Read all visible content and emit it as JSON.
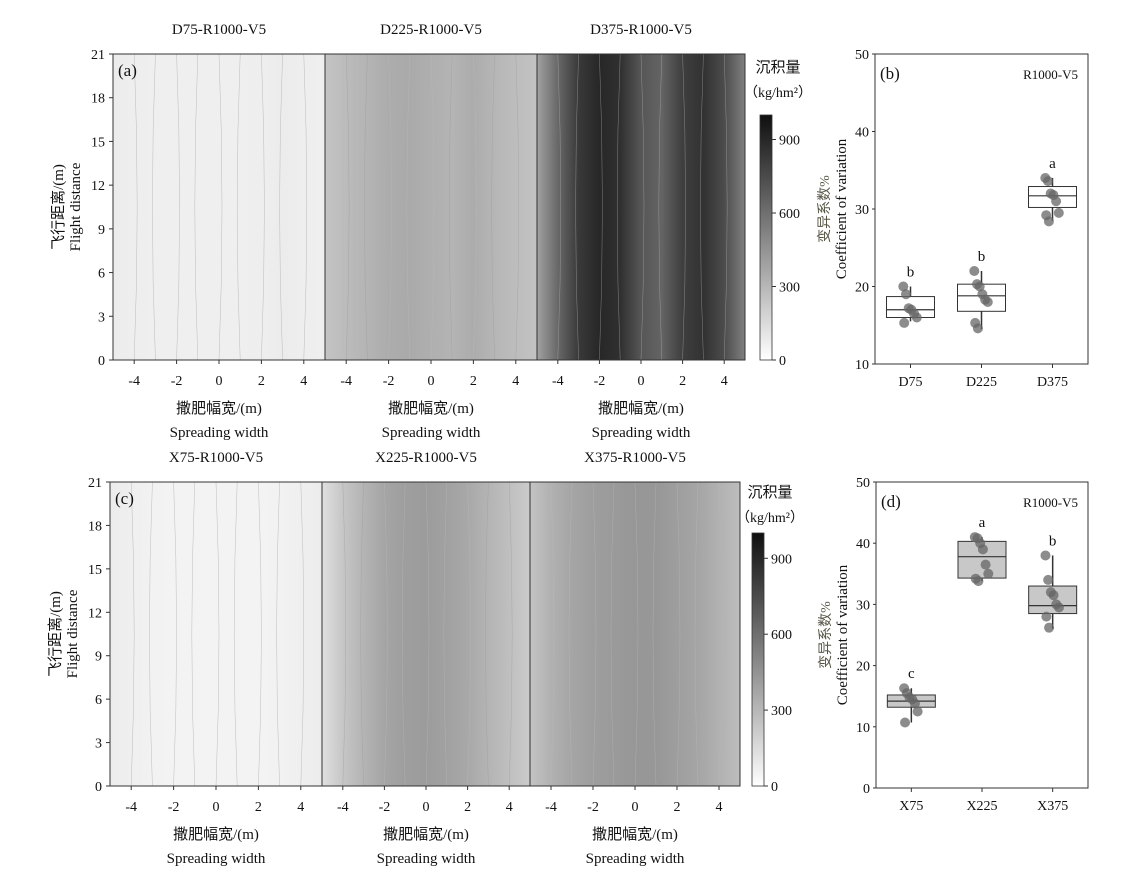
{
  "chart_data": [
    {
      "type": "heatmap",
      "id": "a",
      "panel_label": "(a)",
      "ylabel_cn": "飞行距离/(m)",
      "ylabel": "Flight distance",
      "yticks": [
        "0",
        "3",
        "6",
        "9",
        "12",
        "15",
        "18",
        "21"
      ],
      "ylim": [
        0,
        21
      ],
      "xticks": [
        "-4",
        "-2",
        "0",
        "2",
        "4"
      ],
      "xlim": [
        -5,
        5
      ],
      "xlabel_cn": "撒肥幅宽/(m)",
      "xlabel": "Spreading width",
      "colorbar": {
        "title": "沉积量",
        "unit": "（kg/hm²）",
        "ticks": [
          "0",
          "300",
          "600",
          "900"
        ],
        "range": [
          0,
          1000
        ]
      },
      "panels": [
        {
          "title": "D75-R1000-V5",
          "x": [
            -5,
            -4,
            -3,
            -2,
            -1,
            0,
            1,
            2,
            3,
            4,
            5
          ],
          "values": [
            60,
            50,
            45,
            45,
            45,
            45,
            45,
            50,
            60,
            50,
            45
          ]
        },
        {
          "title": "D225-R1000-V5",
          "x": [
            -5,
            -4,
            -3,
            -2,
            -1,
            0,
            1,
            2,
            3,
            4,
            5
          ],
          "values": [
            230,
            270,
            300,
            330,
            340,
            320,
            300,
            330,
            290,
            260,
            240
          ]
        },
        {
          "title": "D375-R1000-V5",
          "x": [
            -5,
            -4,
            -3,
            -2,
            -1,
            0,
            1,
            2,
            3,
            4,
            5
          ],
          "values": [
            380,
            620,
            820,
            900,
            860,
            700,
            640,
            800,
            850,
            740,
            520
          ]
        }
      ]
    },
    {
      "type": "box",
      "id": "b",
      "panel_label": "(b)",
      "annotation": "R1000-V5",
      "ylabel_cn": "变异系数%",
      "ylabel": "Coefficient of variation",
      "ylim": [
        10,
        50
      ],
      "yticks": [
        "10",
        "20",
        "30",
        "40",
        "50"
      ],
      "groups": [
        {
          "name": "D75",
          "min": 15.5,
          "q1": 16,
          "median": 17,
          "q3": 18.7,
          "max": 20,
          "letter": "b",
          "points": [
            20,
            19,
            17.2,
            17,
            16.5,
            16,
            15.3
          ]
        },
        {
          "name": "D225",
          "min": 14.5,
          "q1": 16.8,
          "median": 18.8,
          "q3": 20.3,
          "max": 22,
          "letter": "b",
          "points": [
            22,
            20.3,
            20,
            19,
            18.3,
            18,
            15.3,
            14.6
          ]
        },
        {
          "name": "D375",
          "min": 28.5,
          "q1": 30.2,
          "median": 31.7,
          "q3": 32.9,
          "max": 34,
          "letter": "a",
          "points": [
            34,
            33.6,
            32,
            31.8,
            31,
            29.5,
            29.2,
            28.4
          ]
        }
      ]
    },
    {
      "type": "heatmap",
      "id": "c",
      "panel_label": "(c)",
      "ylabel_cn": "飞行距离/(m)",
      "ylabel": "Flight distance",
      "yticks": [
        "0",
        "3",
        "6",
        "9",
        "12",
        "15",
        "18",
        "21"
      ],
      "ylim": [
        0,
        21
      ],
      "xticks": [
        "-4",
        "-2",
        "0",
        "2",
        "4"
      ],
      "xlim": [
        -5,
        5
      ],
      "xlabel_cn": "撒肥幅宽/(m)",
      "xlabel": "Spreading width",
      "colorbar": {
        "title": "沉积量",
        "unit": "（kg/hm²）",
        "ticks": [
          "0",
          "300",
          "600",
          "900"
        ],
        "range": [
          0,
          1000
        ]
      },
      "panels": [
        {
          "title": "X75-R1000-V5",
          "x": [
            -5,
            -4,
            -3,
            -2,
            -1,
            0,
            1,
            2,
            3,
            4,
            5
          ],
          "values": [
            60,
            45,
            35,
            30,
            30,
            30,
            30,
            30,
            35,
            45,
            60
          ]
        },
        {
          "title": "X225-R1000-V5",
          "x": [
            -5,
            -4,
            -3,
            -2,
            -1,
            0,
            1,
            2,
            3,
            4,
            5
          ],
          "values": [
            110,
            220,
            300,
            360,
            390,
            400,
            380,
            350,
            300,
            250,
            200
          ]
        },
        {
          "title": "X375-R1000-V5",
          "x": [
            -5,
            -4,
            -3,
            -2,
            -1,
            0,
            1,
            2,
            3,
            4,
            5
          ],
          "values": [
            230,
            310,
            360,
            390,
            410,
            420,
            420,
            390,
            360,
            310,
            260
          ]
        }
      ]
    },
    {
      "type": "box",
      "id": "d",
      "panel_label": "(d)",
      "annotation": "R1000-V5",
      "ylabel_cn": "变异系数%",
      "ylabel": "Coefficient of variation",
      "ylim": [
        0,
        50
      ],
      "yticks": [
        "0",
        "10",
        "20",
        "30",
        "40",
        "50"
      ],
      "groups": [
        {
          "name": "X75",
          "min": 10.7,
          "q1": 13.2,
          "median": 14.2,
          "q3": 15.2,
          "max": 16.3,
          "letter": "c",
          "points": [
            16.3,
            15.5,
            14.8,
            14.5,
            13.8,
            12.5,
            10.7
          ]
        },
        {
          "name": "X225",
          "min": 33.8,
          "q1": 34.3,
          "median": 37.8,
          "q3": 40.3,
          "max": 41,
          "letter": "a",
          "points": [
            41,
            40.8,
            40,
            39,
            36.5,
            35,
            34.2,
            33.8
          ]
        },
        {
          "name": "X375",
          "min": 26,
          "q1": 28.5,
          "median": 29.8,
          "q3": 33,
          "max": 38,
          "letter": "b",
          "points": [
            38,
            34,
            32,
            31.5,
            30,
            29.5,
            28,
            26.2
          ]
        }
      ]
    }
  ]
}
